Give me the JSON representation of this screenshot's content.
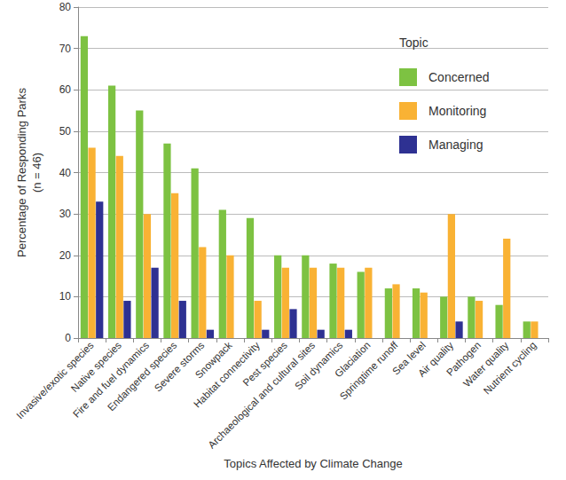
{
  "chart_data": {
    "type": "bar",
    "x_label": "Topics Affected by Climate Change",
    "y_label": "Percentage of Responding Parks\n(n = 46)",
    "categories": [
      "Invasive/exotic species",
      "Native species",
      "Fire and fuel dynamics",
      "Endangered species",
      "Severe storms",
      "Snowpack",
      "Habitat connectivity",
      "Pest species",
      "Archaeological and cultural sites",
      "Soil dynamics",
      "Glaciation",
      "Springtime runoff",
      "Sea level",
      "Air quality",
      "Pathogen",
      "Water quality",
      "Nutrient cycling"
    ],
    "series": [
      {
        "name": "Concerned",
        "color": "#7dc242",
        "values": [
          73,
          61,
          55,
          47,
          41,
          31,
          29,
          20,
          20,
          18,
          16,
          12,
          12,
          10,
          10,
          8,
          4
        ]
      },
      {
        "name": "Monitoring",
        "color": "#f9b234",
        "values": [
          46,
          44,
          30,
          35,
          22,
          20,
          9,
          17,
          17,
          17,
          17,
          13,
          11,
          30,
          9,
          24,
          4
        ]
      },
      {
        "name": "Managing",
        "color": "#2e3192",
        "values": [
          33,
          9,
          17,
          9,
          2,
          0,
          2,
          7,
          2,
          2,
          0,
          0,
          0,
          4,
          0,
          0,
          0
        ]
      }
    ],
    "ylim": [
      0,
      80
    ],
    "yticks": [
      0,
      10,
      20,
      30,
      40,
      50,
      60,
      70,
      80
    ],
    "grid": true,
    "legend": "top-right",
    "legend_title": "Topic"
  }
}
